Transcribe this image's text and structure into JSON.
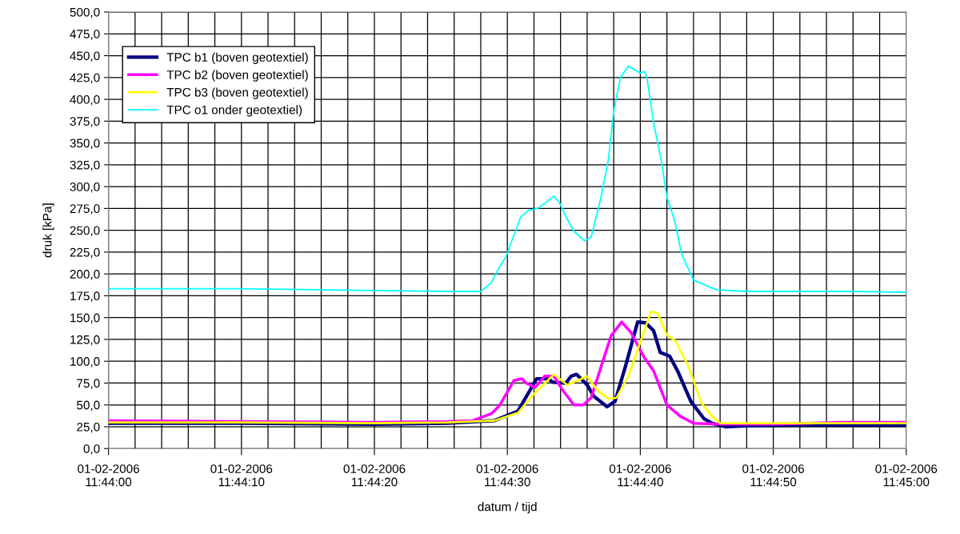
{
  "chart_data": {
    "type": "line",
    "xlabel": "datum / tijd",
    "ylabel": "druk [kPa]",
    "grid": true,
    "legend": "top left",
    "line_style": "solid",
    "marker": "none",
    "xlim": [
      "2006-02-01T11:44:00",
      "2006-02-01T11:45:00"
    ],
    "xticks": [
      {
        "value": "2006-02-01T11:44:00",
        "label": "01-02-2006\n11:44:00"
      },
      {
        "value": "2006-02-01T11:44:02",
        "label": null
      },
      {
        "value": "2006-02-01T11:44:04",
        "label": null
      },
      {
        "value": "2006-02-01T11:44:06",
        "label": null
      },
      {
        "value": "2006-02-01T11:44:08",
        "label": null
      },
      {
        "value": "2006-02-01T11:44:10",
        "label": "01-02-2006\n11:44:10"
      },
      {
        "value": "2006-02-01T11:44:12",
        "label": null
      },
      {
        "value": "2006-02-01T11:44:14",
        "label": null
      },
      {
        "value": "2006-02-01T11:44:16",
        "label": null
      },
      {
        "value": "2006-02-01T11:44:18",
        "label": null
      },
      {
        "value": "2006-02-01T11:44:20",
        "label": "01-02-2006\n11:44:20"
      },
      {
        "value": "2006-02-01T11:44:22",
        "label": null
      },
      {
        "value": "2006-02-01T11:44:24",
        "label": null
      },
      {
        "value": "2006-02-01T11:44:26",
        "label": null
      },
      {
        "value": "2006-02-01T11:44:28",
        "label": null
      },
      {
        "value": "2006-02-01T11:44:30",
        "label": "01-02-2006\n11:44:30"
      },
      {
        "value": "2006-02-01T11:44:32",
        "label": null
      },
      {
        "value": "2006-02-01T11:44:34",
        "label": null
      },
      {
        "value": "2006-02-01T11:44:36",
        "label": null
      },
      {
        "value": "2006-02-01T11:44:38",
        "label": null
      },
      {
        "value": "2006-02-01T11:44:40",
        "label": "01-02-2006\n11:44:40"
      },
      {
        "value": "2006-02-01T11:44:42",
        "label": null
      },
      {
        "value": "2006-02-01T11:44:44",
        "label": null
      },
      {
        "value": "2006-02-01T11:44:46",
        "label": null
      },
      {
        "value": "2006-02-01T11:44:48",
        "label": null
      },
      {
        "value": "2006-02-01T11:44:50",
        "label": "01-02-2006\n11:44:50"
      },
      {
        "value": "2006-02-01T11:44:52",
        "label": null
      },
      {
        "value": "2006-02-01T11:44:54",
        "label": null
      },
      {
        "value": "2006-02-01T11:44:56",
        "label": null
      },
      {
        "value": "2006-02-01T11:44:58",
        "label": null
      },
      {
        "value": "2006-02-01T11:45:00",
        "label": "01-02-2006\n11:45:00"
      }
    ],
    "ylim": [
      0,
      500
    ],
    "yticks": [
      {
        "value": 0,
        "label": "0,0"
      },
      {
        "value": 25,
        "label": "25,0"
      },
      {
        "value": 50,
        "label": "50,0"
      },
      {
        "value": 75,
        "label": "75,0"
      },
      {
        "value": 100,
        "label": "100,0"
      },
      {
        "value": 125,
        "label": "125,0"
      },
      {
        "value": 150,
        "label": "150,0"
      },
      {
        "value": 175,
        "label": "175,0"
      },
      {
        "value": 200,
        "label": "200,0"
      },
      {
        "value": 225,
        "label": "225,0"
      },
      {
        "value": 250,
        "label": "250,0"
      },
      {
        "value": 275,
        "label": "275,0"
      },
      {
        "value": 300,
        "label": "300,0"
      },
      {
        "value": 325,
        "label": "325,0"
      },
      {
        "value": 350,
        "label": "350,0"
      },
      {
        "value": 375,
        "label": "375,0"
      },
      {
        "value": 400,
        "label": "400,0"
      },
      {
        "value": 425,
        "label": "425,0"
      },
      {
        "value": 450,
        "label": "450,0"
      },
      {
        "value": 475,
        "label": "475,0"
      },
      {
        "value": 500,
        "label": "500,0"
      }
    ],
    "series": [
      {
        "name": "TPC b1 (boven geotextiel)",
        "color": "#000080",
        "x": [
          "2006-02-01T11:44:00",
          "2006-02-01T11:44:10",
          "2006-02-01T11:44:20",
          "2006-02-01T11:44:25.5",
          "2006-02-01T11:44:29.0",
          "2006-02-01T11:44:30.8",
          "2006-02-01T11:44:32.2",
          "2006-02-01T11:44:33.1",
          "2006-02-01T11:44:33.4",
          "2006-02-01T11:44:34.4",
          "2006-02-01T11:44:34.8",
          "2006-02-01T11:44:35.2",
          "2006-02-01T11:44:36.0",
          "2006-02-01T11:44:36.5",
          "2006-02-01T11:44:37.5",
          "2006-02-01T11:44:38.1",
          "2006-02-01T11:44:38.9",
          "2006-02-01T11:44:39.8",
          "2006-02-01T11:44:40.4",
          "2006-02-01T11:44:41.0",
          "2006-02-01T11:44:41.5",
          "2006-02-01T11:44:42.2",
          "2006-02-01T11:44:42.8",
          "2006-02-01T11:44:43.8",
          "2006-02-01T11:44:44.8",
          "2006-02-01T11:44:45.4",
          "2006-02-01T11:44:46.4",
          "2006-02-01T11:44:48",
          "2006-02-01T11:44:52",
          "2006-02-01T11:44:56",
          "2006-02-01T11:45:00"
        ],
        "values": [
          29,
          29,
          28,
          29,
          32,
          43,
          80,
          80,
          76,
          75,
          83,
          85,
          73,
          60,
          48,
          54,
          95,
          145,
          144,
          135,
          110,
          106,
          89,
          54,
          34,
          29,
          25,
          26,
          27,
          27,
          27
        ]
      },
      {
        "name": "TPC b2 (boven geotextiel)",
        "color": "#ff00ff",
        "x": [
          "2006-02-01T11:44:00",
          "2006-02-01T11:44:10",
          "2006-02-01T11:44:20",
          "2006-02-01T11:44:25.5",
          "2006-02-01T11:44:27.4",
          "2006-02-01T11:44:28.8",
          "2006-02-01T11:44:29.4",
          "2006-02-01T11:44:30.5",
          "2006-02-01T11:44:31.1",
          "2006-02-01T11:44:31.4",
          "2006-02-01T11:44:32.1",
          "2006-02-01T11:44:32.8",
          "2006-02-01T11:44:33.5",
          "2006-02-01T11:44:34.2",
          "2006-02-01T11:44:35.0",
          "2006-02-01T11:44:35.7",
          "2006-02-01T11:44:36.3",
          "2006-02-01T11:44:37.2",
          "2006-02-01T11:44:37.8",
          "2006-02-01T11:44:38.6",
          "2006-02-01T11:44:39.3",
          "2006-02-01T11:44:40.3",
          "2006-02-01T11:44:41.0",
          "2006-02-01T11:44:42.0",
          "2006-02-01T11:44:43.0",
          "2006-02-01T11:44:44.0",
          "2006-02-01T11:44:46",
          "2006-02-01T11:44:50",
          "2006-02-01T11:44:55",
          "2006-02-01T11:45:00"
        ],
        "values": [
          32,
          31,
          30,
          31,
          32,
          40,
          49,
          78,
          80,
          75,
          70,
          83,
          83,
          66,
          50,
          50,
          58,
          101,
          129,
          145,
          133,
          104,
          89,
          50,
          37,
          29,
          28,
          28,
          30,
          30
        ]
      },
      {
        "name": "TPC b3 (boven geotextiel)",
        "color": "#ffff00",
        "x": [
          "2006-02-01T11:44:00",
          "2006-02-01T11:44:10",
          "2006-02-01T11:44:20",
          "2006-02-01T11:44:25.5",
          "2006-02-01T11:44:29.0",
          "2006-02-01T11:44:30.8",
          "2006-02-01T11:44:31.9",
          "2006-02-01T11:44:33.5",
          "2006-02-01T11:44:34.5",
          "2006-02-01T11:44:35.3",
          "2006-02-01T11:44:36.0",
          "2006-02-01T11:44:36.7",
          "2006-02-01T11:44:37.6",
          "2006-02-01T11:44:38.2",
          "2006-02-01T11:44:39.1",
          "2006-02-01T11:44:40.0",
          "2006-02-01T11:44:40.8",
          "2006-02-01T11:44:41.3",
          "2006-02-01T11:44:42.0",
          "2006-02-01T11:44:42.6",
          "2006-02-01T11:44:43.6",
          "2006-02-01T11:44:44.6",
          "2006-02-01T11:44:45.4",
          "2006-02-01T11:44:46.0",
          "2006-02-01T11:44:50",
          "2006-02-01T11:44:55",
          "2006-02-01T11:45:00"
        ],
        "values": [
          30,
          30,
          29,
          30,
          32,
          41,
          61,
          85,
          73,
          78,
          83,
          68,
          57,
          58,
          83,
          122,
          157,
          155,
          130,
          124,
          95,
          52,
          37,
          29,
          29,
          29,
          29
        ]
      },
      {
        "name": "TPC o1 onder geotextiel)",
        "color": "#00ffff",
        "x": [
          "2006-02-01T11:44:00",
          "2006-02-01T11:44:10",
          "2006-02-01T11:44:20",
          "2006-02-01T11:44:26",
          "2006-02-01T11:44:28",
          "2006-02-01T11:44:28.8",
          "2006-02-01T11:44:29.3",
          "2006-02-01T11:44:29.9",
          "2006-02-01T11:44:31.0",
          "2006-02-01T11:44:31.6",
          "2006-02-01T11:44:32.3",
          "2006-02-01T11:44:33.5",
          "2006-02-01T11:44:33.9",
          "2006-02-01T11:44:34.5",
          "2006-02-01T11:44:35.0",
          "2006-02-01T11:44:35.8",
          "2006-02-01T11:44:36.3",
          "2006-02-01T11:44:37.0",
          "2006-02-01T11:44:37.6",
          "2006-02-01T11:44:38.0",
          "2006-02-01T11:44:38.5",
          "2006-02-01T11:44:39.1",
          "2006-02-01T11:44:40.0",
          "2006-02-01T11:44:40.3",
          "2006-02-01T11:44:40.5",
          "2006-02-01T11:44:41.0",
          "2006-02-01T11:44:41.6",
          "2006-02-01T11:44:42.0",
          "2006-02-01T11:44:42.6",
          "2006-02-01T11:44:43.1",
          "2006-02-01T11:44:44.0",
          "2006-02-01T11:44:45.7",
          "2006-02-01T11:44:48",
          "2006-02-01T11:44:52",
          "2006-02-01T11:44:56",
          "2006-02-01T11:45:00"
        ],
        "values": [
          183,
          183,
          181,
          180,
          180,
          190,
          205,
          220,
          265,
          273,
          275,
          289,
          282,
          263,
          249,
          238,
          242,
          285,
          331,
          386,
          425,
          438,
          430,
          432,
          425,
          373,
          328,
          288,
          260,
          223,
          193,
          182,
          180,
          180,
          180,
          179
        ]
      }
    ]
  }
}
